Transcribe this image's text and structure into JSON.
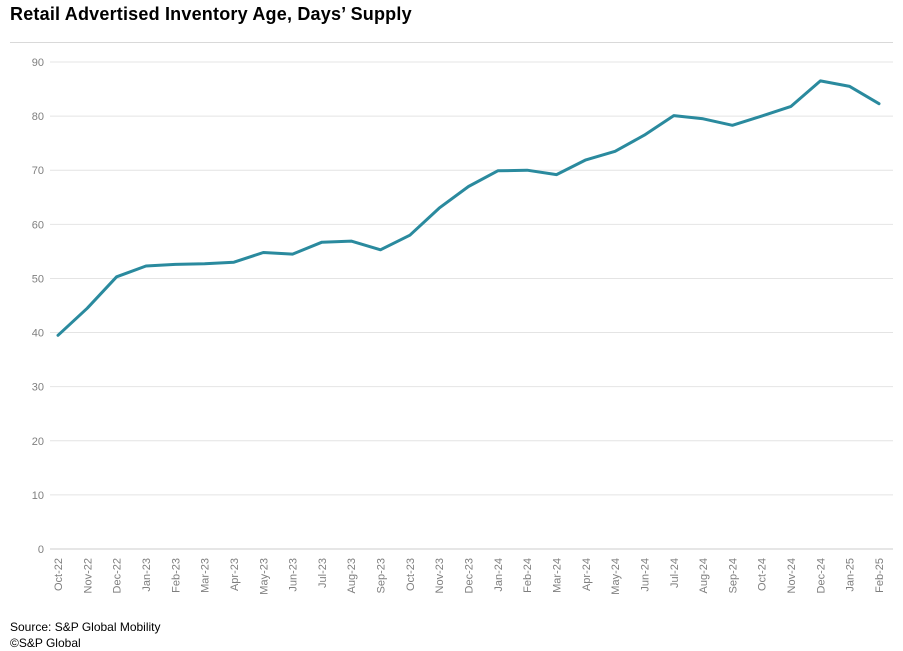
{
  "title": "Retail Advertised Inventory Age, Days’ Supply",
  "footer": {
    "source": "Source: S&P Global Mobility",
    "copyright": "©S&P Global"
  },
  "colors": {
    "line": "#2a8a9e",
    "grid": "#e4e4e4",
    "axis": "#cccccc",
    "tick_text": "#7f7f7f",
    "title_text": "#000000"
  },
  "chart_data": {
    "type": "line",
    "title": "Retail Advertised Inventory Age, Days’ Supply",
    "xlabel": "",
    "ylabel": "",
    "ylim": [
      0,
      90
    ],
    "ytick_step": 10,
    "grid": "horizontal",
    "legend": "none",
    "categories": [
      "Oct-22",
      "Nov-22",
      "Dec-22",
      "Jan-23",
      "Feb-23",
      "Mar-23",
      "Apr-23",
      "May-23",
      "Jun-23",
      "Jul-23",
      "Aug-23",
      "Sep-23",
      "Oct-23",
      "Nov-23",
      "Dec-23",
      "Jan-24",
      "Feb-24",
      "Mar-24",
      "Apr-24",
      "May-24",
      "Jun-24",
      "Jul-24",
      "Aug-24",
      "Sep-24",
      "Oct-24",
      "Nov-24",
      "Dec-24",
      "Jan-25",
      "Feb-25"
    ],
    "series": [
      {
        "name": "Days' Supply",
        "values": [
          39.5,
          44.5,
          50.3,
          52.3,
          52.6,
          52.7,
          53.0,
          54.8,
          54.5,
          56.7,
          56.9,
          55.3,
          58.0,
          63.0,
          67.0,
          69.9,
          70.0,
          69.2,
          71.9,
          73.5,
          76.5,
          80.1,
          79.5,
          78.3,
          80.0,
          81.8,
          86.5,
          85.5,
          82.3
        ]
      }
    ]
  }
}
